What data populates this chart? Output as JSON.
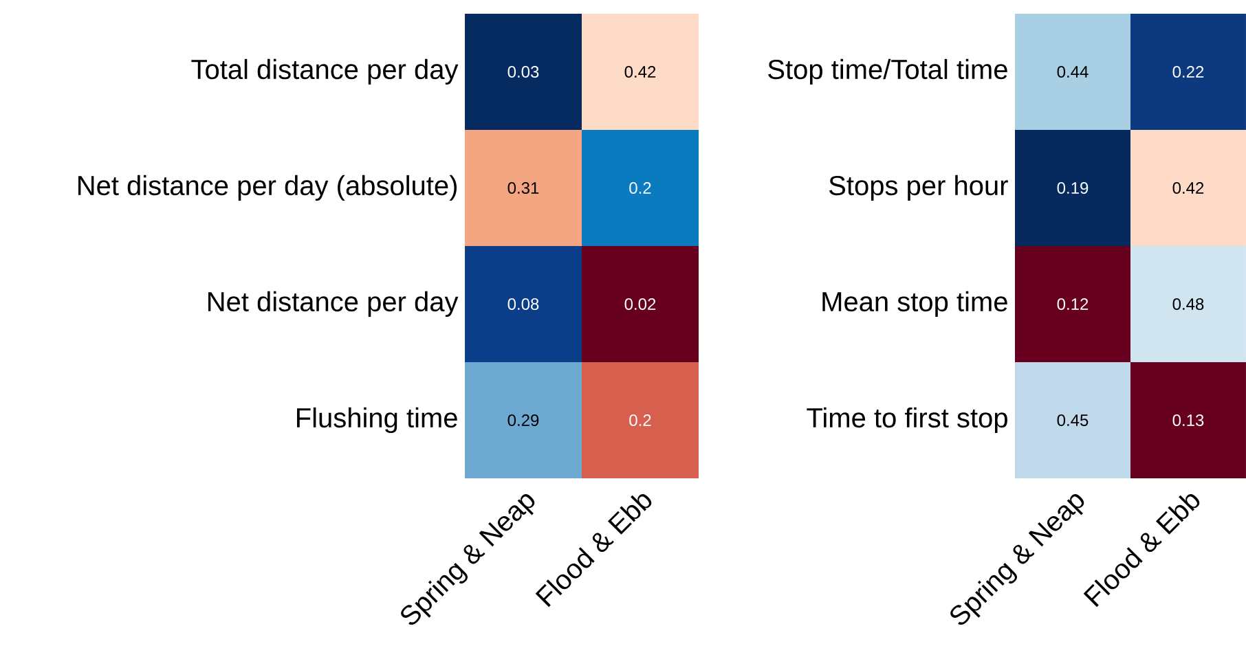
{
  "chart_data": [
    {
      "type": "heatmap",
      "data_labels": true,
      "categories": [
        "Spring & Neap",
        "Flood & Ebb"
      ],
      "y_categories": [
        "Total distance per day",
        "Net distance per day (absolute)",
        "Net distance per day",
        "Flushing time"
      ],
      "cells": [
        [
          0.03,
          0.42
        ],
        [
          0.31,
          0.2
        ],
        [
          0.08,
          0.02
        ],
        [
          0.29,
          0.2
        ]
      ],
      "colors": [
        [
          "#062b60",
          "#fddbc7"
        ],
        [
          "#f4a582",
          "#0a7bbf"
        ],
        [
          "#0b3d89",
          "#67001f"
        ],
        [
          "#6ea9d2",
          "#d6604d"
        ]
      ]
    },
    {
      "type": "heatmap",
      "data_labels": true,
      "categories": [
        "Spring & Neap",
        "Flood & Ebb"
      ],
      "y_categories": [
        "Stop time/Total time",
        "Stops per hour",
        "Mean stop time",
        "Time to first stop"
      ],
      "cells": [
        [
          0.44,
          0.22
        ],
        [
          0.19,
          0.42
        ],
        [
          0.12,
          0.48
        ],
        [
          0.45,
          0.13
        ]
      ],
      "colors": [
        [
          "#a9cfe5",
          "#0d3a7f"
        ],
        [
          "#062a5e",
          "#fddbc7"
        ],
        [
          "#67001f",
          "#d1e5f0"
        ],
        [
          "#c0daeb",
          "#67001f"
        ]
      ]
    }
  ]
}
